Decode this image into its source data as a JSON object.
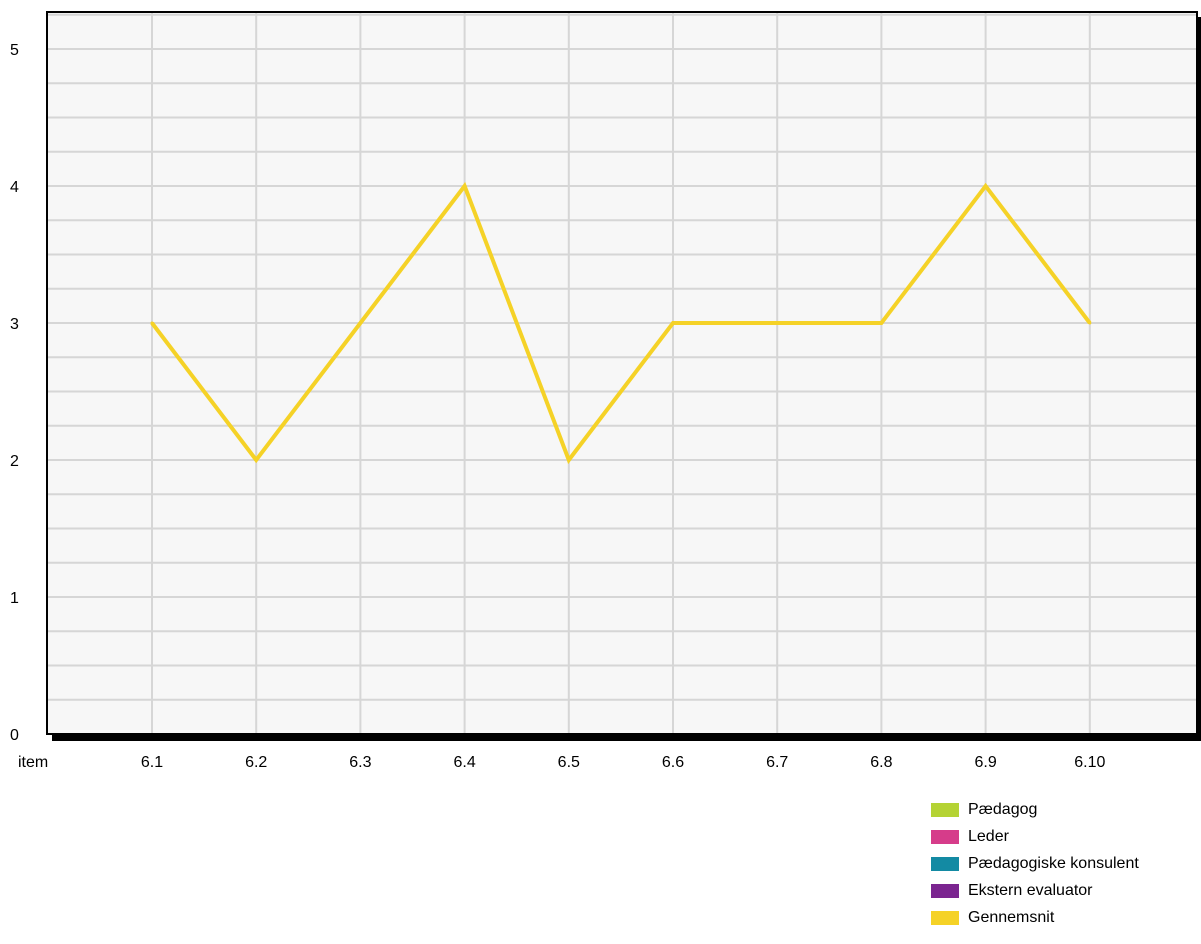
{
  "chart_data": {
    "type": "line",
    "title": "",
    "xlabel": "item",
    "ylabel": "",
    "categories": [
      "6.1",
      "6.2",
      "6.3",
      "6.4",
      "6.5",
      "6.6",
      "6.7",
      "6.8",
      "6.9",
      "6.10"
    ],
    "ylim": [
      0,
      5
    ],
    "yticks": [
      "0",
      "1",
      "2",
      "3",
      "4",
      "5"
    ],
    "grid": true,
    "series": [
      {
        "name": "Gennemsnit",
        "color": "#f5d227",
        "values": [
          3,
          2,
          3,
          4,
          2,
          3,
          3,
          3,
          4,
          3
        ]
      }
    ],
    "legend": {
      "placement": "bottom-right",
      "items": [
        {
          "label": "Pædagog",
          "color": "#b5d334"
        },
        {
          "label": "Leder",
          "color": "#d63c8a"
        },
        {
          "label": "Pædagogiske konsulent",
          "color": "#138aa3"
        },
        {
          "label": "Ekstern evaluator",
          "color": "#7b2590"
        },
        {
          "label": "Gennemsnit",
          "color": "#f5d227"
        }
      ]
    }
  }
}
